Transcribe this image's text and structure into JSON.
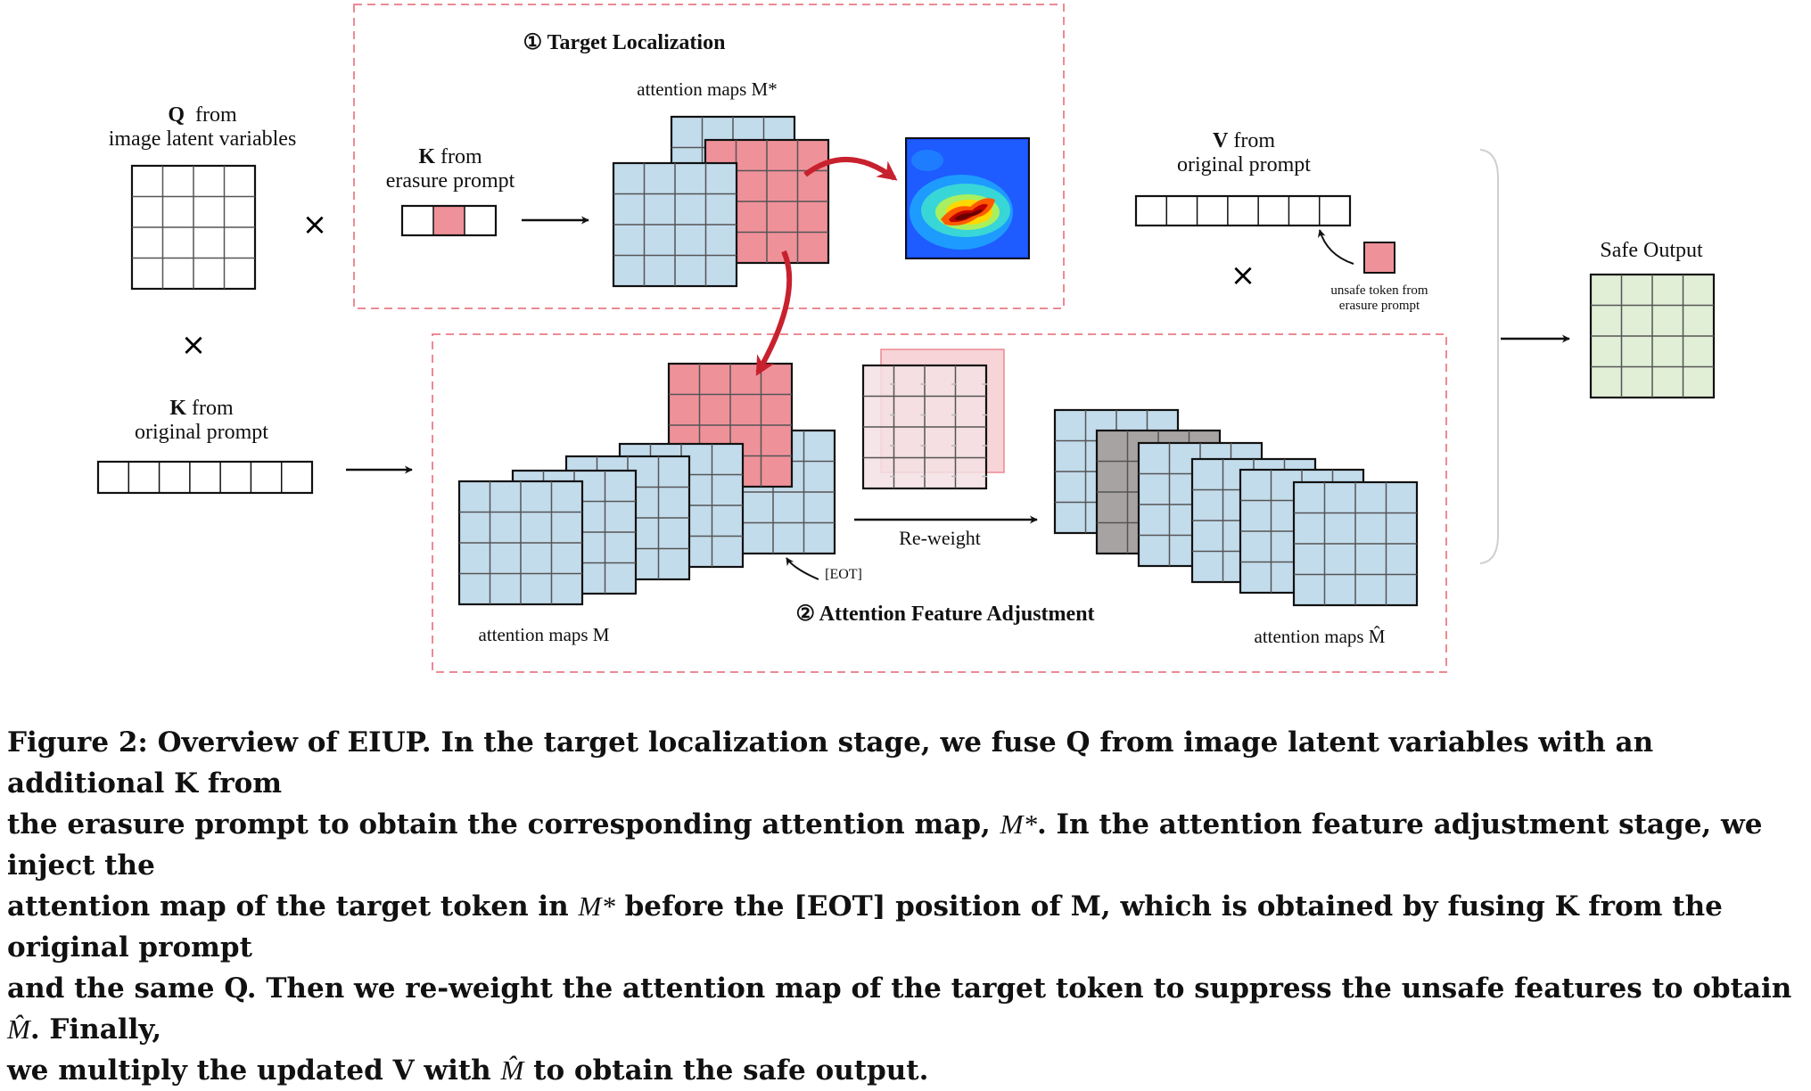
{
  "stage1": {
    "number": "①",
    "title": "Target Localization"
  },
  "stage2": {
    "number": "②",
    "title": "Attention Feature Adjustment"
  },
  "labels": {
    "q_bold": "Q",
    "q_rest": "from",
    "q_line2": "image latent variables",
    "k_erase_bold": "K",
    "k_erase_rest": "from",
    "k_erase_line2": "erasure prompt",
    "k_orig_bold": "K",
    "k_orig_rest": "from",
    "k_orig_line2": "original prompt",
    "v_bold": "V",
    "v_rest": "from",
    "v_line2": "original prompt",
    "attn_star": "attention maps M*",
    "attn_m": "attention maps M",
    "attn_mhat": "attention maps M̂",
    "reweight": "Re-weight",
    "eot": "[EOT]",
    "unsafe_line1": "unsafe token from",
    "unsafe_line2": "erasure prompt",
    "safe_output": "Safe Output",
    "times": "×"
  },
  "caption": {
    "line1": "Figure 2: Overview of EIUP. In the target localization stage, we fuse Q from image latent variables with an additional K from",
    "line2a": "the erasure prompt to obtain the corresponding attention map, ",
    "line2m": "M*",
    "line2b": ". In the attention feature adjustment stage, we inject the",
    "line3a": "attention map of the target token in ",
    "line3m": "M*",
    "line3b": " before the [EOT] position of M, which is obtained by fusing K from the original prompt",
    "line4a": "and the same Q. Then we re-weight the attention map of the target token to suppress the unsafe features to obtain ",
    "line4m": "M̂",
    "line4b": ". Finally,",
    "line5a": "we multiply the updated V with ",
    "line5m": "M̂",
    "line5b": " to obtain the safe output."
  },
  "colors": {
    "blue_fill": "#c3dcec",
    "pink_fill": "#ef9199",
    "gray_fill": "#a7a3a3",
    "green_fill": "#e0efd6",
    "dash_border": "#ec8a93",
    "arrow_red": "#c8212e"
  }
}
